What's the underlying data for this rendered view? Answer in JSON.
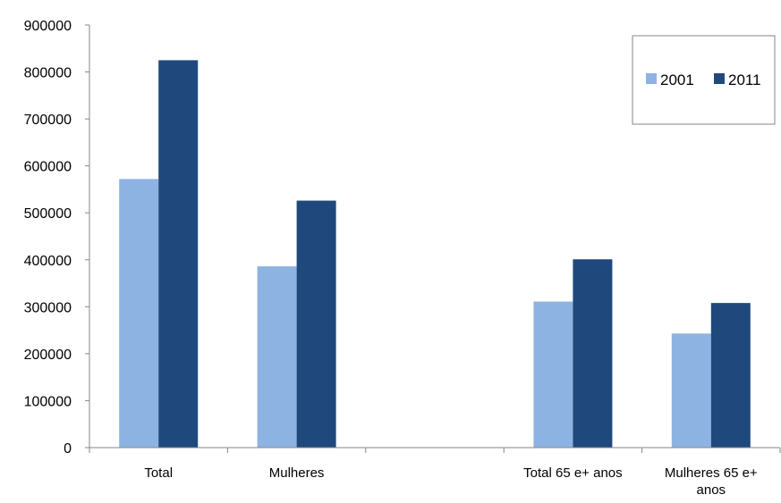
{
  "chart_data": {
    "type": "bar",
    "title": "",
    "xlabel": "",
    "ylabel": "",
    "categories": [
      "Total",
      "Mulheres",
      "",
      "Total 65 e+ anos",
      "Mulheres 65 e+ anos"
    ],
    "category_lines": [
      [
        "Total"
      ],
      [
        "Mulheres"
      ],
      [],
      [
        "Total 65 e+ anos"
      ],
      [
        "Mulheres 65 e+",
        "anos"
      ]
    ],
    "series": [
      {
        "name": "2001",
        "color": "#8DB3E2",
        "values": [
          572000,
          386000,
          null,
          311000,
          243000
        ]
      },
      {
        "name": "2011",
        "color": "#1F497D",
        "values": [
          825000,
          526000,
          null,
          401000,
          308000
        ]
      }
    ],
    "ylim": [
      0,
      900000
    ],
    "yticks": [
      "0",
      "100000",
      "200000",
      "300000",
      "400000",
      "500000",
      "600000",
      "700000",
      "800000",
      "900000"
    ],
    "grid": false,
    "legend_position": "top-right"
  }
}
